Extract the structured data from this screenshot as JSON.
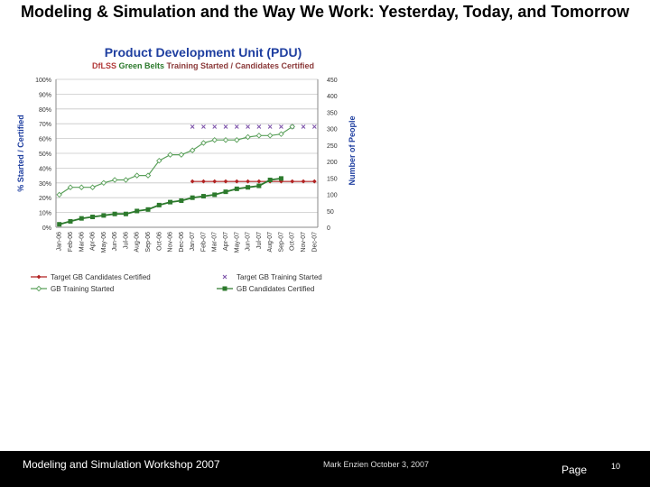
{
  "slide": {
    "title": "Modeling & Simulation and the Way We Work: Yesterday, Today, and Tomorrow",
    "footer_left": "Modeling and Simulation Workshop 2007",
    "footer_mid": "Mark Enzien  October 3, 2007",
    "page_label": "Page",
    "page_number": "10"
  },
  "chart_data": {
    "type": "line",
    "title": "Product Development Unit (PDU)",
    "subtitle_parts": [
      "DfLSS ",
      "Green Belts ",
      "Training Started / Candidates Certified"
    ],
    "ylabel_left": "% Started / Certified",
    "ylabel_right": "Number of People",
    "ylim_left": [
      0,
      100
    ],
    "ylim_right": [
      0,
      450
    ],
    "yticks_left": [
      "0%",
      "10%",
      "20%",
      "30%",
      "40%",
      "50%",
      "60%",
      "70%",
      "80%",
      "90%",
      "100%"
    ],
    "yticks_right": [
      "0",
      "50",
      "100",
      "150",
      "200",
      "250",
      "300",
      "350",
      "400",
      "450"
    ],
    "categories": [
      "Jan-06",
      "Feb-06",
      "Mar-06",
      "Apr-06",
      "May-06",
      "Jun-06",
      "Jul-06",
      "Aug-06",
      "Sep-06",
      "Oct-06",
      "Nov-06",
      "Dec-06",
      "Jan-07",
      "Feb-07",
      "Mar-07",
      "Apr-07",
      "May-07",
      "Jun-07",
      "Jul-07",
      "Aug-07",
      "Sep-07",
      "Oct-07",
      "Nov-07",
      "Dec-07"
    ],
    "legend_position": "bottom",
    "series": [
      {
        "name": "Target GB Candidates Certified",
        "axis": "left",
        "color": "#b22222",
        "marker": "diamond",
        "values": [
          null,
          null,
          null,
          null,
          null,
          null,
          null,
          null,
          null,
          null,
          null,
          null,
          31,
          31,
          31,
          31,
          31,
          31,
          31,
          31,
          31,
          31,
          31,
          31
        ]
      },
      {
        "name": "Target GB Training Started",
        "axis": "left",
        "color": "#7a4fa8",
        "marker": "x",
        "values": [
          null,
          null,
          null,
          null,
          null,
          null,
          null,
          null,
          null,
          null,
          null,
          null,
          68,
          68,
          68,
          68,
          68,
          68,
          68,
          68,
          68,
          68,
          68,
          68
        ]
      },
      {
        "name": "GB Training Started",
        "axis": "left",
        "color": "#5aa05a",
        "marker": "diamond-open",
        "values": [
          22,
          27,
          27,
          27,
          30,
          32,
          32,
          35,
          35,
          45,
          49,
          49,
          52,
          57,
          59,
          59,
          59,
          61,
          62,
          62,
          63,
          68,
          null,
          null
        ]
      },
      {
        "name": "GB Candidates Certified",
        "axis": "left",
        "color": "#2d7a2d",
        "marker": "square",
        "values": [
          2,
          4,
          6,
          7,
          8,
          9,
          9,
          11,
          12,
          15,
          17,
          18,
          20,
          21,
          22,
          24,
          26,
          27,
          28,
          32,
          33,
          null,
          null,
          null
        ]
      }
    ]
  }
}
